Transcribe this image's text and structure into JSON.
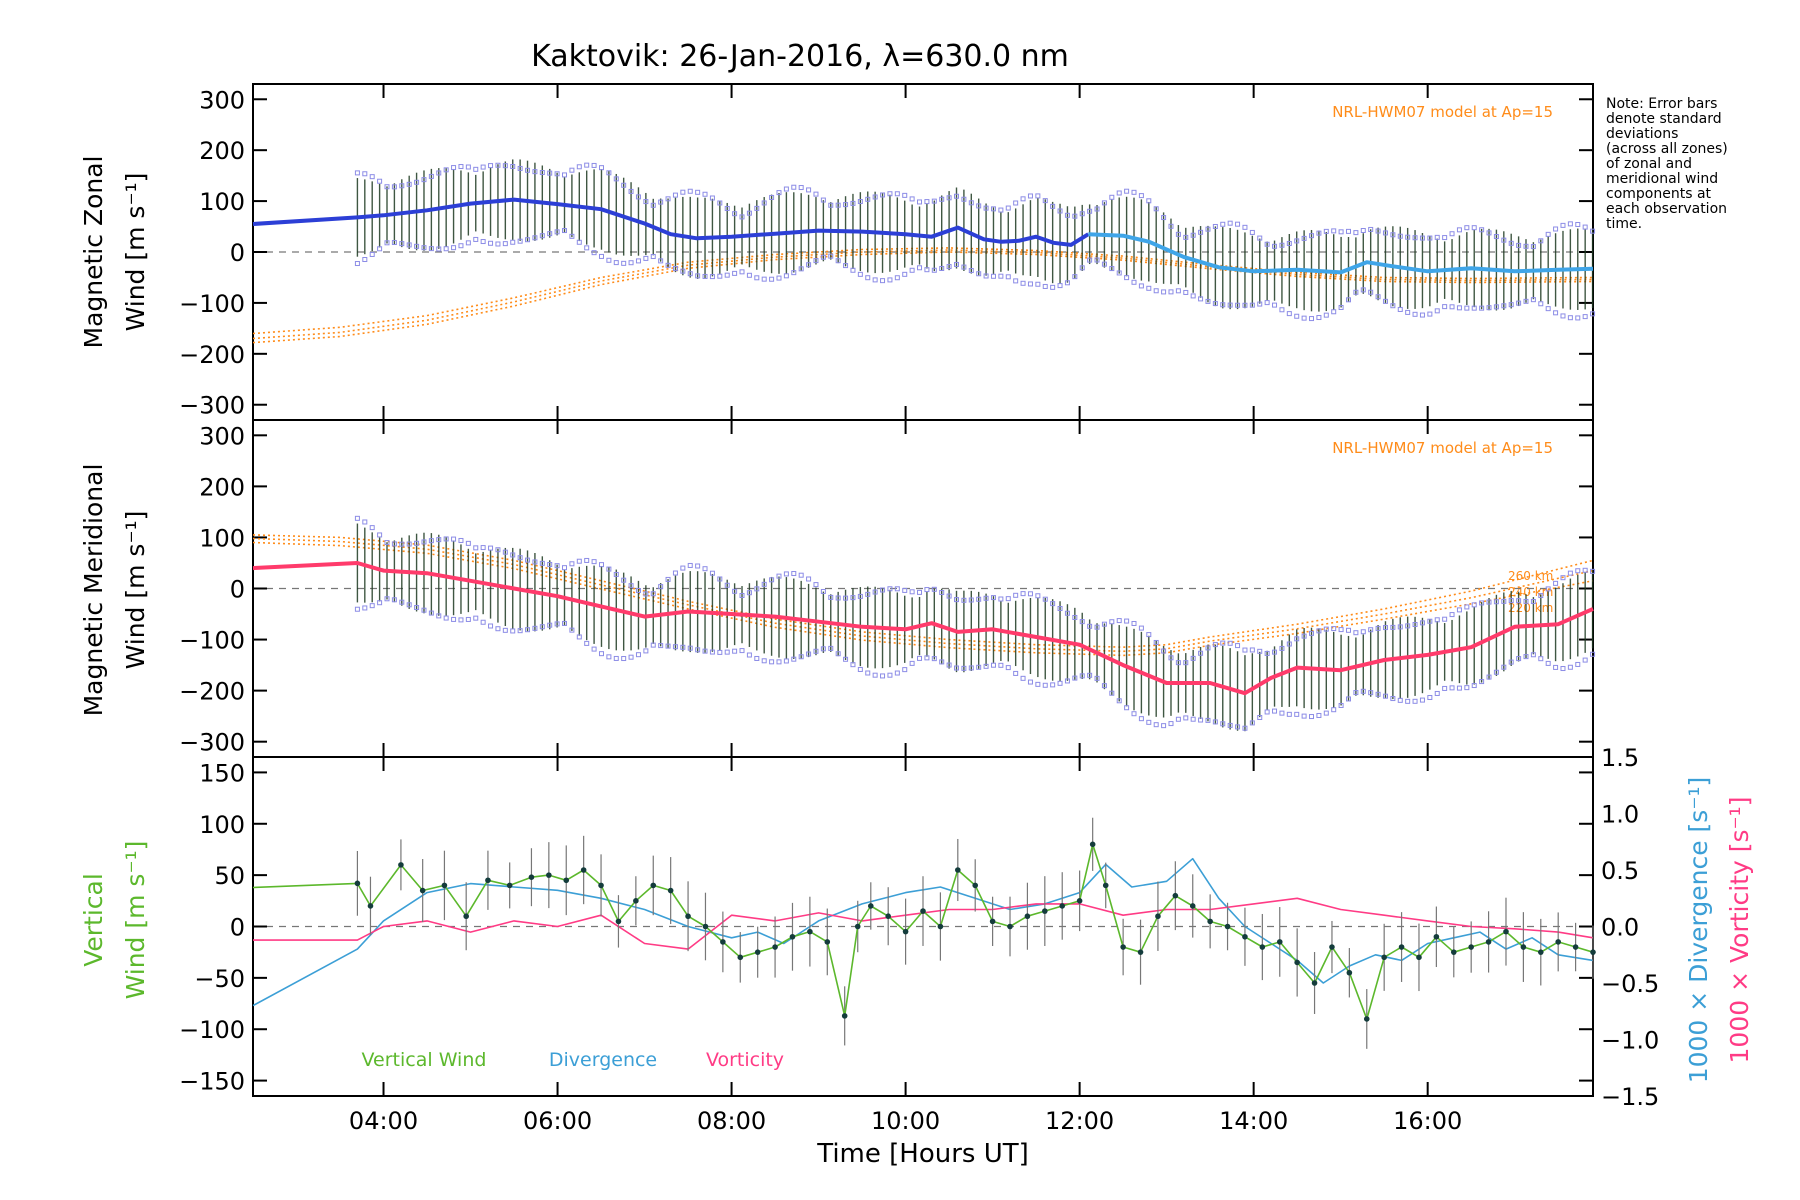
{
  "chart_data": [
    {
      "type": "line",
      "panel": "zonal",
      "title": "Kaktovik: 26-Jan-2016, λ=630.0 nm",
      "ylabel_line1": "Magnetic Zonal",
      "ylabel_line2": "Wind [m s⁻¹]",
      "ylim": [
        -330,
        330
      ],
      "yticks": [
        -300,
        -200,
        -100,
        0,
        100,
        200,
        300
      ],
      "model_label": "NRL-HWM07 model at Ap=15",
      "note_lines": [
        "Note: Error bars",
        "denote standard",
        "deviations",
        "(across all zones)",
        "of zonal and",
        "meridional wind",
        "components at",
        "each observation",
        "time."
      ],
      "series": [
        {
          "color": "#2c3fd6",
          "x": [
            2.5,
            3.7,
            4.0,
            4.5,
            5.0,
            5.5,
            6.0,
            6.5,
            7.0,
            7.3,
            7.6,
            8.0,
            8.5,
            9.0,
            9.5,
            10.0,
            10.3,
            10.6,
            10.9,
            11.1,
            11.3,
            11.5,
            11.7,
            11.9,
            12.1
          ],
          "y": [
            55,
            68,
            72,
            82,
            95,
            103,
            94,
            84,
            56,
            35,
            27,
            30,
            36,
            42,
            40,
            35,
            30,
            48,
            25,
            20,
            22,
            30,
            18,
            14,
            35
          ]
        },
        {
          "color": "#3fa5e8",
          "x": [
            12.1,
            12.5,
            12.8,
            13.2,
            13.6,
            14.0,
            14.5,
            15.0,
            15.3,
            15.6,
            16.0,
            16.5,
            17.0,
            17.5,
            17.9
          ],
          "y": [
            35,
            32,
            20,
            -10,
            -30,
            -38,
            -35,
            -40,
            -20,
            -28,
            -38,
            -32,
            -38,
            -35,
            -33
          ]
        }
      ],
      "model": [
        {
          "x": [
            2.5,
            3.5,
            4.5,
            5.5,
            6.5,
            7.5,
            8.5,
            9.5,
            10.5,
            11.5,
            12.5,
            13.5,
            14.5,
            15.5,
            16.5,
            17.9
          ],
          "y": [
            -160,
            -148,
            -125,
            -90,
            -50,
            -20,
            -5,
            5,
            8,
            3,
            -8,
            -25,
            -40,
            -50,
            -52,
            -50
          ]
        },
        {
          "x": [
            2.5,
            3.5,
            4.5,
            5.5,
            6.5,
            7.5,
            8.5,
            9.5,
            10.5,
            11.5,
            12.5,
            13.5,
            14.5,
            15.5,
            16.5,
            17.9
          ],
          "y": [
            -170,
            -158,
            -134,
            -98,
            -57,
            -26,
            -10,
            0,
            4,
            -1,
            -12,
            -29,
            -44,
            -54,
            -56,
            -54
          ]
        },
        {
          "x": [
            2.5,
            3.5,
            4.5,
            5.5,
            6.5,
            7.5,
            8.5,
            9.5,
            10.5,
            11.5,
            12.5,
            13.5,
            14.5,
            15.5,
            16.5,
            17.9
          ],
          "y": [
            -178,
            -166,
            -142,
            -106,
            -64,
            -32,
            -15,
            -5,
            0,
            -5,
            -16,
            -33,
            -48,
            -58,
            -60,
            -58
          ]
        }
      ]
    },
    {
      "type": "line",
      "panel": "meridional",
      "ylabel_line1": "Magnetic Meridional",
      "ylabel_line2": "Wind [m s⁻¹]",
      "ylim": [
        -330,
        330
      ],
      "yticks": [
        -300,
        -200,
        -100,
        0,
        100,
        200,
        300
      ],
      "model_label": "NRL-HWM07 model at Ap=15",
      "altitude_labels": [
        "260 km",
        "240 km",
        "220 km"
      ],
      "series": [
        {
          "color": "#ff3b6b",
          "x": [
            2.5,
            3.7,
            4.0,
            4.5,
            5.0,
            5.5,
            6.0,
            6.5,
            7.0,
            7.5,
            8.0,
            8.5,
            9.0,
            9.5,
            10.0,
            10.3,
            10.6,
            11.0,
            11.5,
            12.0,
            12.5,
            13.0,
            13.5,
            13.9,
            14.2,
            14.5,
            15.0,
            15.5,
            16.0,
            16.5,
            17.0,
            17.5,
            17.9
          ],
          "y": [
            40,
            50,
            35,
            30,
            15,
            0,
            -15,
            -35,
            -55,
            -45,
            -50,
            -55,
            -65,
            -75,
            -80,
            -68,
            -85,
            -80,
            -95,
            -110,
            -150,
            -185,
            -185,
            -205,
            -175,
            -155,
            -160,
            -140,
            -130,
            -115,
            -75,
            -70,
            -40
          ]
        }
      ],
      "model": [
        {
          "x": [
            2.5,
            3.5,
            4.5,
            5.5,
            6.5,
            7.5,
            8.5,
            9.5,
            10.5,
            11.5,
            12.5,
            13.0,
            13.5,
            14.5,
            15.5,
            16.5,
            17.9
          ],
          "y": [
            105,
            100,
            85,
            55,
            15,
            -25,
            -60,
            -85,
            -100,
            -110,
            -115,
            -110,
            -95,
            -70,
            -40,
            -5,
            55
          ]
        },
        {
          "x": [
            2.5,
            3.5,
            4.5,
            5.5,
            6.5,
            7.5,
            8.5,
            9.5,
            10.5,
            11.5,
            12.5,
            13.0,
            13.5,
            14.5,
            15.5,
            16.5,
            17.9
          ],
          "y": [
            98,
            92,
            77,
            47,
            7,
            -32,
            -68,
            -93,
            -108,
            -118,
            -123,
            -118,
            -103,
            -79,
            -50,
            -18,
            35
          ]
        },
        {
          "x": [
            2.5,
            3.5,
            4.5,
            5.5,
            6.5,
            7.5,
            8.5,
            9.5,
            10.5,
            11.5,
            12.5,
            13.0,
            13.5,
            14.5,
            15.5,
            16.5,
            17.9
          ],
          "y": [
            90,
            84,
            69,
            39,
            -1,
            -40,
            -76,
            -101,
            -116,
            -126,
            -131,
            -126,
            -111,
            -88,
            -60,
            -30,
            15
          ]
        }
      ]
    },
    {
      "type": "line",
      "panel": "vertical",
      "ylabel_line1": "Vertical",
      "ylabel_line2": "Wind [m s⁻¹]",
      "right_label_1": "1000 × Divergence [s⁻¹]",
      "right_label_2": "1000 × Vorticity [s⁻¹]",
      "ylim": [
        -165,
        165
      ],
      "yticks": [
        -150,
        -100,
        -50,
        0,
        50,
        100,
        150
      ],
      "y2lim": [
        -1.5,
        1.5
      ],
      "y2ticks": [
        "−1.5",
        "−1.0",
        "−0.5",
        "0.0",
        "0.5",
        "1.0",
        "1.5"
      ],
      "legend": [
        "Vertical Wind",
        "Divergence",
        "Vorticity"
      ],
      "series": [
        {
          "name": "Vertical Wind",
          "color": "#5cb82c",
          "x": [
            2.5,
            3.7,
            3.85,
            4.2,
            4.45,
            4.7,
            4.95,
            5.2,
            5.45,
            5.7,
            5.9,
            6.1,
            6.3,
            6.5,
            6.7,
            6.9,
            7.1,
            7.3,
            7.5,
            7.7,
            7.9,
            8.1,
            8.3,
            8.5,
            8.7,
            8.9,
            9.1,
            9.3,
            9.45,
            9.6,
            9.8,
            10.0,
            10.2,
            10.4,
            10.6,
            10.8,
            11.0,
            11.2,
            11.4,
            11.6,
            11.8,
            12.0,
            12.15,
            12.3,
            12.5,
            12.7,
            12.9,
            13.1,
            13.3,
            13.5,
            13.7,
            13.9,
            14.1,
            14.3,
            14.5,
            14.7,
            14.9,
            15.1,
            15.3,
            15.5,
            15.7,
            15.9,
            16.1,
            16.3,
            16.5,
            16.7,
            16.9,
            17.1,
            17.3,
            17.5,
            17.7,
            17.9
          ],
          "y": [
            38,
            42,
            20,
            60,
            35,
            40,
            10,
            45,
            40,
            48,
            50,
            45,
            55,
            40,
            5,
            25,
            40,
            35,
            10,
            0,
            -15,
            -30,
            -25,
            -20,
            -10,
            -5,
            -15,
            -87,
            0,
            20,
            10,
            -5,
            15,
            0,
            55,
            40,
            5,
            0,
            10,
            15,
            20,
            25,
            80,
            40,
            -20,
            -25,
            10,
            30,
            20,
            5,
            0,
            -10,
            -20,
            -15,
            -35,
            -55,
            -20,
            -45,
            -90,
            -30,
            -20,
            -30,
            -10,
            -25,
            -20,
            -15,
            -5,
            -20,
            -25,
            -15,
            -20,
            -25
          ]
        },
        {
          "name": "Divergence",
          "color": "#3c9fd6",
          "x": [
            2.5,
            3.7,
            4.0,
            4.5,
            5.0,
            5.5,
            6.0,
            6.5,
            7.0,
            7.5,
            8.0,
            8.3,
            8.6,
            9.0,
            9.5,
            10.0,
            10.4,
            10.8,
            11.2,
            11.6,
            12.0,
            12.3,
            12.6,
            13.0,
            13.3,
            13.6,
            13.9,
            14.2,
            14.5,
            14.8,
            15.1,
            15.4,
            15.7,
            16.0,
            16.3,
            16.6,
            16.9,
            17.2,
            17.5,
            17.9
          ],
          "y": [
            -0.7,
            -0.2,
            0.05,
            0.3,
            0.38,
            0.35,
            0.32,
            0.25,
            0.15,
            0.0,
            -0.1,
            -0.05,
            -0.15,
            0.05,
            0.2,
            0.3,
            0.35,
            0.25,
            0.15,
            0.2,
            0.3,
            0.55,
            0.35,
            0.4,
            0.6,
            0.25,
            0.0,
            -0.15,
            -0.3,
            -0.5,
            -0.35,
            -0.25,
            -0.3,
            -0.15,
            -0.1,
            -0.05,
            -0.2,
            -0.1,
            -0.25,
            -0.3
          ]
        },
        {
          "name": "Vorticity",
          "color": "#ff3b85",
          "x": [
            2.5,
            3.7,
            4.0,
            4.5,
            5.0,
            5.5,
            6.0,
            6.5,
            7.0,
            7.5,
            8.0,
            8.5,
            9.0,
            9.5,
            10.0,
            10.5,
            11.0,
            11.5,
            12.0,
            12.5,
            13.0,
            13.5,
            14.0,
            14.5,
            15.0,
            15.5,
            16.0,
            16.5,
            17.0,
            17.5,
            17.9
          ],
          "y": [
            -0.12,
            -0.12,
            0.0,
            0.05,
            -0.05,
            0.05,
            0.0,
            0.1,
            -0.15,
            -0.2,
            0.1,
            0.05,
            0.12,
            0.05,
            0.1,
            0.15,
            0.15,
            0.2,
            0.2,
            0.1,
            0.15,
            0.15,
            0.2,
            0.25,
            0.15,
            0.1,
            0.05,
            0.0,
            -0.02,
            -0.05,
            -0.1
          ]
        }
      ]
    }
  ],
  "xaxis": {
    "label": "Time [Hours UT]",
    "xlim": [
      2.5,
      17.9
    ],
    "ticks": [
      {
        "value": 4,
        "label": "04:00"
      },
      {
        "value": 6,
        "label": "06:00"
      },
      {
        "value": 8,
        "label": "08:00"
      },
      {
        "value": 10,
        "label": "10:00"
      },
      {
        "value": 12,
        "label": "12:00"
      },
      {
        "value": 14,
        "label": "14:00"
      },
      {
        "value": 16,
        "label": "16:00"
      }
    ]
  }
}
